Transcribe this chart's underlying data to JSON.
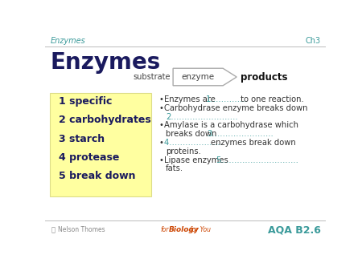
{
  "bg_color": "#ffffff",
  "header_text": "Enzymes",
  "header_color": "#3a9a9a",
  "chapter_text": "Ch3",
  "chapter_color": "#3a9a9a",
  "title_text": "Enzymes",
  "title_color": "#1a1a5e",
  "box_bg": "#ffffa0",
  "box_border": "#dddd88",
  "box_items": [
    "1 specific",
    "2 carbohydrates",
    "3 starch",
    "4 protease",
    "5 break down"
  ],
  "box_text_color": "#1a1a5e",
  "dark": "#333333",
  "teal": "#3a9a9a",
  "footer_right": "AQA B2.6",
  "footer_color": "#3a9a9a"
}
